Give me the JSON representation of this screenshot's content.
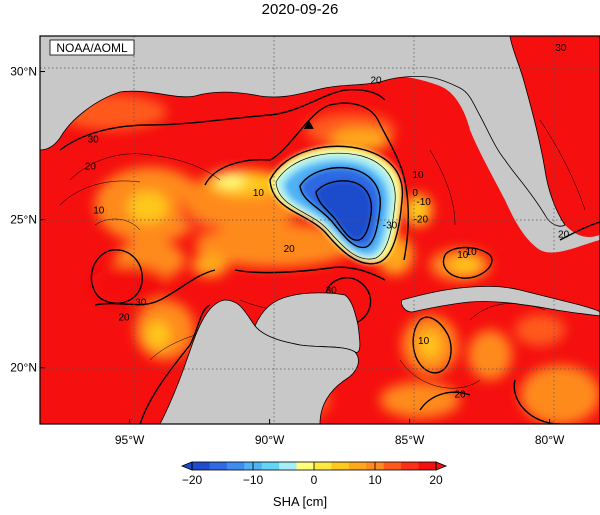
{
  "title": "2020-09-26",
  "source_label": "NOAA/AOML",
  "lat_ticks": [
    {
      "value": 30,
      "label": "30°N"
    },
    {
      "value": 25,
      "label": "25°N"
    },
    {
      "value": 20,
      "label": "20°N"
    }
  ],
  "lon_ticks": [
    {
      "value": -95,
      "label": "95°W"
    },
    {
      "value": -90,
      "label": "90°W"
    },
    {
      "value": -85,
      "label": "85°W"
    },
    {
      "value": -80,
      "label": "80°W"
    }
  ],
  "extent": {
    "lon_min": -98.2,
    "lon_max": -78.2,
    "lat_min": 18.1,
    "lat_max": 31.2
  },
  "colorbar": {
    "label": "SHA [cm]",
    "min": -20,
    "max": 20,
    "ticks": [
      {
        "value": -20,
        "label": "−20"
      },
      {
        "value": -10,
        "label": "−10"
      },
      {
        "value": 0,
        "label": "0"
      },
      {
        "value": 10,
        "label": "10"
      },
      {
        "value": 20,
        "label": "20"
      }
    ],
    "colors": [
      "#1e4ccc",
      "#2f69e3",
      "#3f8bf0",
      "#4fb2f4",
      "#63d5f6",
      "#a6eef8",
      "#ffff7a",
      "#ffe840",
      "#ffc81c",
      "#ffa81c",
      "#ff8a1e",
      "#ff5a1a",
      "#fb2f1a",
      "#f50f0f"
    ]
  },
  "contour_labels": [
    {
      "text": "30",
      "lon": -96.3,
      "lat": 27.6
    },
    {
      "text": "20",
      "lon": -96.4,
      "lat": 26.7
    },
    {
      "text": "10",
      "lon": -96.1,
      "lat": 25.2
    },
    {
      "text": "10",
      "lon": -90.4,
      "lat": 25.8
    },
    {
      "text": "20",
      "lon": -86.2,
      "lat": 29.6
    },
    {
      "text": "10",
      "lon": -84.7,
      "lat": 26.4
    },
    {
      "text": "0",
      "lon": -84.8,
      "lat": 25.8
    },
    {
      "text": "-10",
      "lon": -84.5,
      "lat": 25.5
    },
    {
      "text": "-20",
      "lon": -84.6,
      "lat": 24.9
    },
    {
      "text": "-30",
      "lon": -85.7,
      "lat": 24.7
    },
    {
      "text": "20",
      "lon": -89.3,
      "lat": 23.9
    },
    {
      "text": "30",
      "lon": -87.8,
      "lat": 22.5
    },
    {
      "text": "30",
      "lon": -94.6,
      "lat": 22.1
    },
    {
      "text": "20",
      "lon": -95.2,
      "lat": 21.6
    },
    {
      "text": "10",
      "lon": -84.5,
      "lat": 20.8
    },
    {
      "text": "20",
      "lon": -83.2,
      "lat": 19.0
    },
    {
      "text": "10",
      "lon": -83.1,
      "lat": 23.7
    },
    {
      "text": "10",
      "lon": -82.8,
      "lat": 23.8
    },
    {
      "text": "20",
      "lon": -79.5,
      "lat": 24.4
    },
    {
      "text": "30",
      "lon": -79.6,
      "lat": 30.7
    }
  ],
  "marker": {
    "lon": -88.6,
    "lat": 28.2
  }
}
